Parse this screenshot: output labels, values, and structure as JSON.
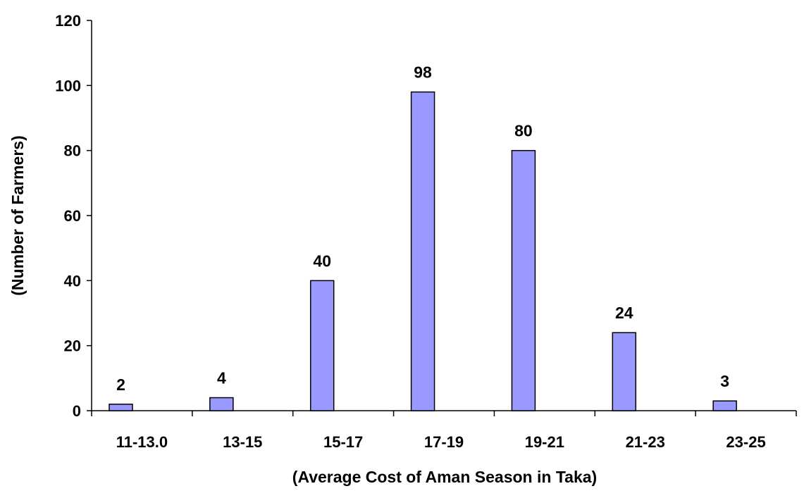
{
  "chart_data": {
    "type": "bar",
    "title": "",
    "xlabel": "(Average Cost of Aman Season in Taka)",
    "ylabel": "(Number of Farmers)",
    "categories": [
      "11-13.0",
      "13-15",
      "15-17",
      "17-19",
      "19-21",
      "21-23",
      "23-25"
    ],
    "values": [
      2,
      4,
      40,
      98,
      80,
      24,
      3
    ],
    "data_labels": [
      "2",
      "4",
      "40",
      "98",
      "80",
      "24",
      "3"
    ],
    "ylim": [
      0,
      120
    ],
    "yticks": [
      0,
      20,
      40,
      60,
      80,
      100,
      120
    ],
    "ytick_labels": [
      "0",
      "20",
      "40",
      "60",
      "80",
      "100",
      "120"
    ],
    "grid": false,
    "legend": "none",
    "colors": {
      "bar_fill": "#9999ff",
      "bar_stroke": "#000000",
      "axis": "#000000"
    }
  }
}
